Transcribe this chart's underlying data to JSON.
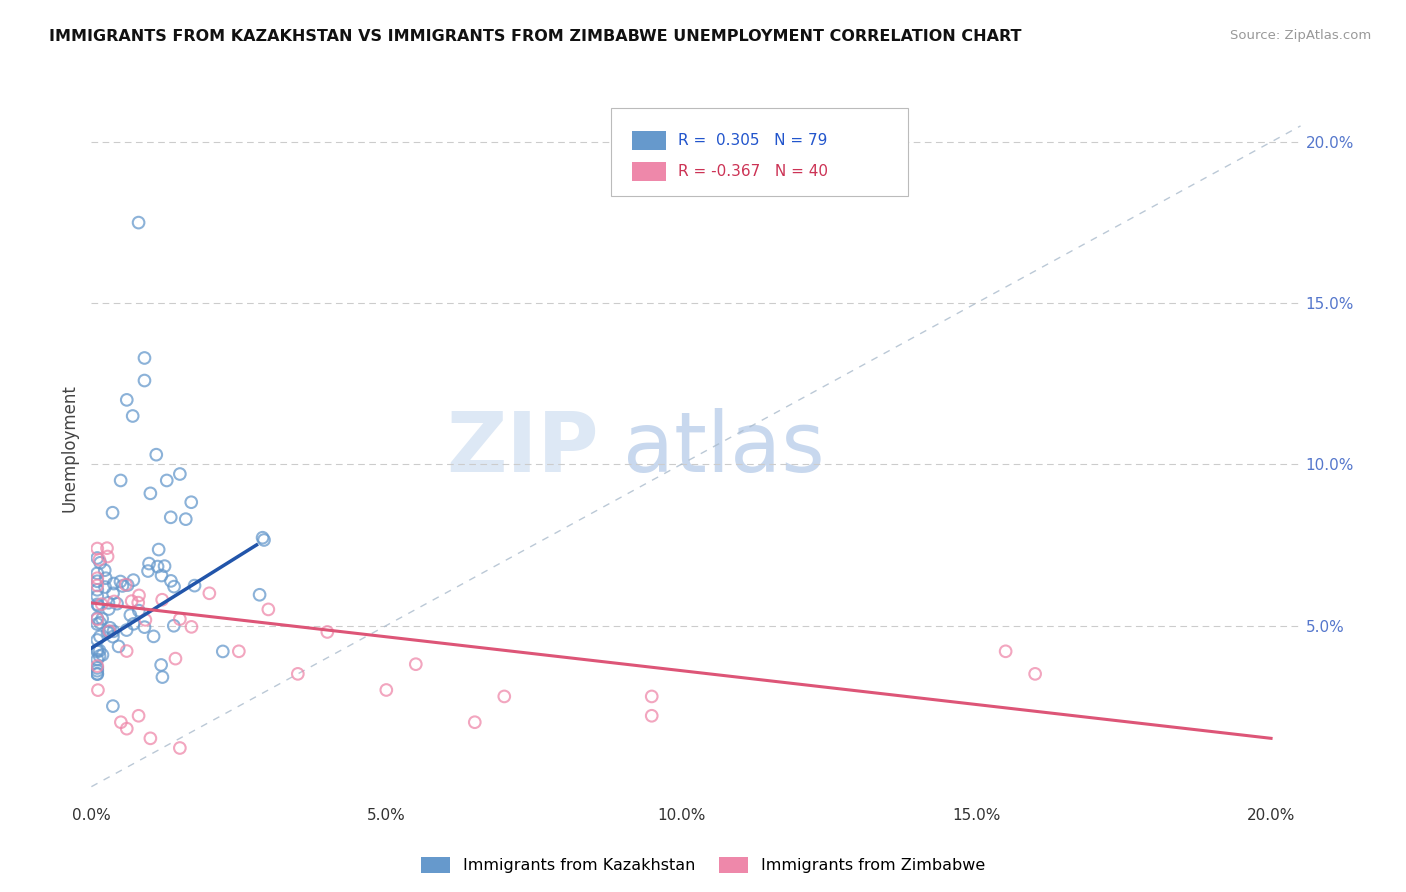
{
  "title": "IMMIGRANTS FROM KAZAKHSTAN VS IMMIGRANTS FROM ZIMBABWE UNEMPLOYMENT CORRELATION CHART",
  "source": "Source: ZipAtlas.com",
  "ylabel": "Unemployment",
  "xlim": [
    0.0,
    0.205
  ],
  "ylim": [
    -0.005,
    0.215
  ],
  "kazakhstan_color": "#6699cc",
  "zimbabwe_color": "#ee88aa",
  "kazakhstan_trend_color": "#2255aa",
  "zimbabwe_trend_color": "#dd5577",
  "dashed_line_color": "#aabbcc",
  "legend_kazakhstan_R": "0.305",
  "legend_kazakhstan_N": "79",
  "legend_zimbabwe_R": "-0.367",
  "legend_zimbabwe_N": "40",
  "background_color": "#ffffff",
  "right_tick_color": "#5577cc",
  "kaz_trend_x0": 0.0,
  "kaz_trend_y0": 0.043,
  "kaz_trend_x1": 0.028,
  "kaz_trend_y1": 0.075,
  "zim_trend_x0": 0.0,
  "zim_trend_y0": 0.057,
  "zim_trend_x1": 0.2,
  "zim_trend_y1": 0.015
}
